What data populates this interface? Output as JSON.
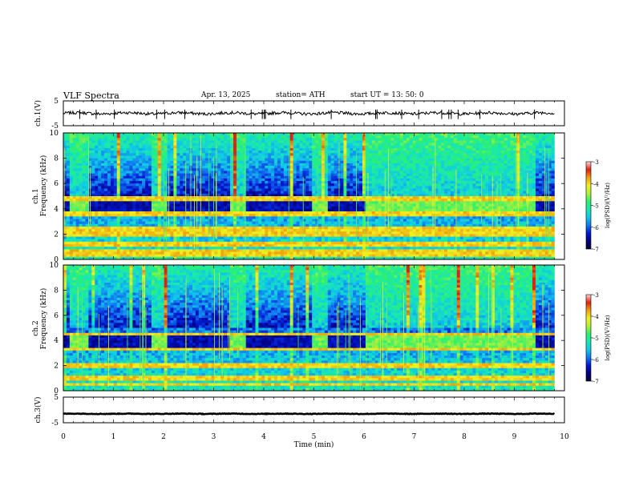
{
  "header": {
    "title": "VLF  Spectra",
    "date": "Apr. 13, 2025",
    "station": "station= ATH",
    "start": "start  UT  =   13: 50: 0"
  },
  "colors": {
    "colormap": [
      "#00003c",
      "#00007c",
      "#0018d0",
      "#1278f0",
      "#10c8e8",
      "#18e8b0",
      "#2cf070",
      "#b0f038",
      "#f0f020",
      "#f0a010",
      "#e02010",
      "#ffd8d8"
    ]
  },
  "chart_data": [
    {
      "type": "line",
      "name": "channel-1-waveform",
      "ylabel": "ch.1(V)",
      "ylim": [
        -5,
        5
      ],
      "yticks": [
        "5",
        "-5"
      ],
      "xlim": [
        0,
        10
      ],
      "signal_level": 0,
      "signal_amplitude": 1
    },
    {
      "type": "heatmap",
      "name": "channel-1-spectrogram",
      "ylabel": [
        "ch.1",
        "Frequency  (kHz)"
      ],
      "ylim": [
        0,
        10
      ],
      "yticks": [
        "0",
        "2",
        "4",
        "6",
        "8",
        "10"
      ],
      "xlim": [
        0,
        10
      ],
      "xunit": "min",
      "colorbar": {
        "label": "log(PSD)(V²/Hz)",
        "ticks": [
          "-3",
          "-4",
          "-5",
          "-6",
          "-7"
        ],
        "range": [
          -7,
          -3
        ]
      },
      "transmitter_band_khz": [
        3.5,
        4.5
      ],
      "transmitter_on_intervals_min": [
        [
          0.15,
          0.5
        ],
        [
          1.75,
          2.1
        ],
        [
          3.3,
          3.65
        ],
        [
          4.95,
          5.3
        ],
        [
          6.0,
          9.45
        ]
      ],
      "strong_lines_khz": [
        0.3,
        0.6,
        1.2,
        1.9,
        2.2,
        2.5,
        3.6,
        4.8
      ]
    },
    {
      "type": "heatmap",
      "name": "channel-2-spectrogram",
      "ylabel": [
        "ch.2",
        "Frequency  (kHz)"
      ],
      "ylim": [
        0,
        10
      ],
      "yticks": [
        "0",
        "2",
        "4",
        "6",
        "8",
        "10"
      ],
      "xlim": [
        0,
        10
      ],
      "xunit": "min",
      "colorbar": {
        "label": "log(PSD)(V²/Hz)",
        "ticks": [
          "-3",
          "-4",
          "-5",
          "-6",
          "-7"
        ],
        "range": [
          -7,
          -3
        ]
      },
      "transmitter_band_khz": [
        3.5,
        4.5
      ],
      "transmitter_on_intervals_min": [
        [
          0.15,
          0.5
        ],
        [
          1.75,
          2.1
        ],
        [
          3.3,
          3.65
        ],
        [
          4.95,
          5.3
        ],
        [
          6.0,
          9.45
        ]
      ],
      "strong_lines_khz": [
        0.5,
        1.0,
        1.9,
        2.1,
        3.3,
        4.5
      ]
    },
    {
      "type": "line",
      "name": "channel-3-waveform",
      "ylabel": "ch.3(V)",
      "ylim": [
        -5,
        5
      ],
      "yticks": [
        "5",
        "-5"
      ],
      "xlim": [
        0,
        10
      ],
      "signal_level": -1.5,
      "signal_amplitude": 0.2
    }
  ],
  "xaxis": {
    "label": "Time  (min)",
    "ticks": [
      "0",
      "1",
      "2",
      "3",
      "4",
      "5",
      "6",
      "7",
      "8",
      "9",
      "10"
    ],
    "range": [
      0,
      10
    ],
    "data_end": 9.8
  }
}
